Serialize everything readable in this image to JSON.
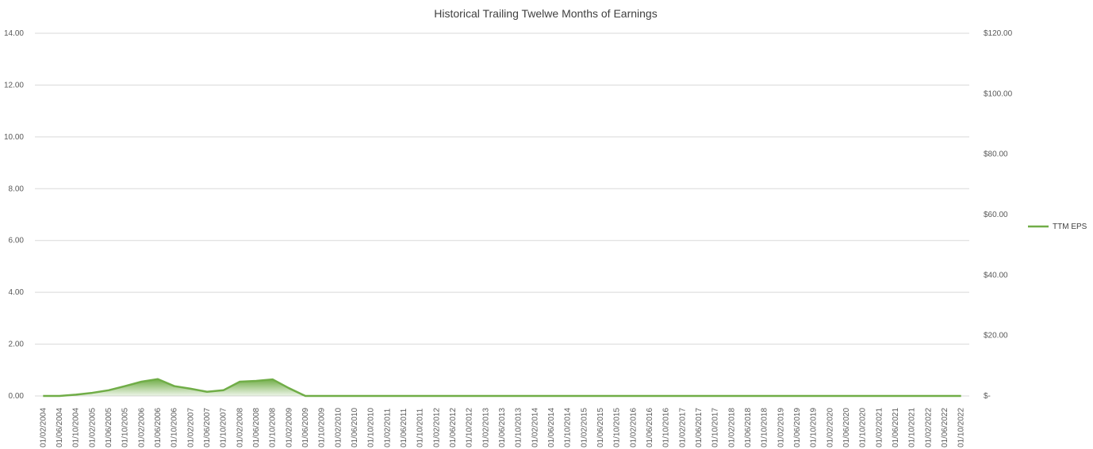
{
  "chart_data": {
    "type": "line",
    "title": "Historical Trailing Twelwe Months of Earnings",
    "left_axis": {
      "min": 0,
      "max": 14,
      "ticks": [
        0,
        2,
        4,
        6,
        8,
        10,
        12,
        14
      ],
      "tick_labels": [
        "0.00",
        "2.00",
        "4.00",
        "6.00",
        "8.00",
        "10.00",
        "12.00",
        "14.00"
      ]
    },
    "right_axis": {
      "min": 0,
      "max": 120,
      "ticks": [
        0,
        20,
        40,
        60,
        80,
        100,
        120
      ],
      "tick_labels": [
        "$-",
        "$20.00",
        "$40.00",
        "$60.00",
        "$80.00",
        "$100.00",
        "$120.00"
      ]
    },
    "grid": true,
    "legend_position": "right",
    "categories": [
      "01/02/2004",
      "01/06/2004",
      "01/10/2004",
      "01/02/2005",
      "01/06/2005",
      "01/10/2005",
      "01/02/2006",
      "01/06/2006",
      "01/10/2006",
      "01/02/2007",
      "01/06/2007",
      "01/10/2007",
      "01/02/2008",
      "01/06/2008",
      "01/10/2008",
      "01/02/2009",
      "01/06/2009",
      "01/10/2009",
      "01/02/2010",
      "01/06/2010",
      "01/10/2010",
      "01/02/2011",
      "01/06/2011",
      "01/10/2011",
      "01/02/2012",
      "01/06/2012",
      "01/10/2012",
      "01/02/2013",
      "01/06/2013",
      "01/10/2013",
      "01/02/2014",
      "01/06/2014",
      "01/10/2014",
      "01/02/2015",
      "01/06/2015",
      "01/10/2015",
      "01/02/2016",
      "01/06/2016",
      "01/10/2016",
      "01/02/2017",
      "01/06/2017",
      "01/10/2017",
      "01/02/2018",
      "01/06/2018",
      "01/10/2018",
      "01/02/2019",
      "01/06/2019",
      "01/10/2019",
      "01/02/2020",
      "01/06/2020",
      "01/10/2020",
      "01/02/2021",
      "01/06/2021",
      "01/10/2021",
      "01/02/2022",
      "01/06/2022",
      "01/10/2022"
    ],
    "series": [
      {
        "name": "TTM EPS",
        "axis": "left",
        "style": "area-line",
        "color": "#70ad47",
        "values": [
          0.0,
          0.0,
          0.05,
          0.12,
          0.22,
          0.38,
          0.55,
          0.65,
          0.38,
          0.28,
          0.16,
          0.22,
          0.55,
          0.58,
          0.64,
          0.3,
          0.0,
          0.0,
          0.0,
          0.0,
          0.0,
          0.0,
          0.0,
          0.0,
          0.0,
          0.0,
          0.0,
          0.0,
          0.0,
          0.0,
          0.0,
          0.0,
          0.0,
          0.0,
          0.0,
          0.0,
          0.0,
          0.0,
          0.0,
          0.0,
          0.0,
          0.0,
          0.0,
          0.0,
          0.0,
          0.0,
          0.0,
          0.0,
          0.0,
          0.0,
          0.0,
          0.0,
          0.0,
          0.0,
          0.0,
          0.0,
          0.0
        ]
      }
    ]
  }
}
